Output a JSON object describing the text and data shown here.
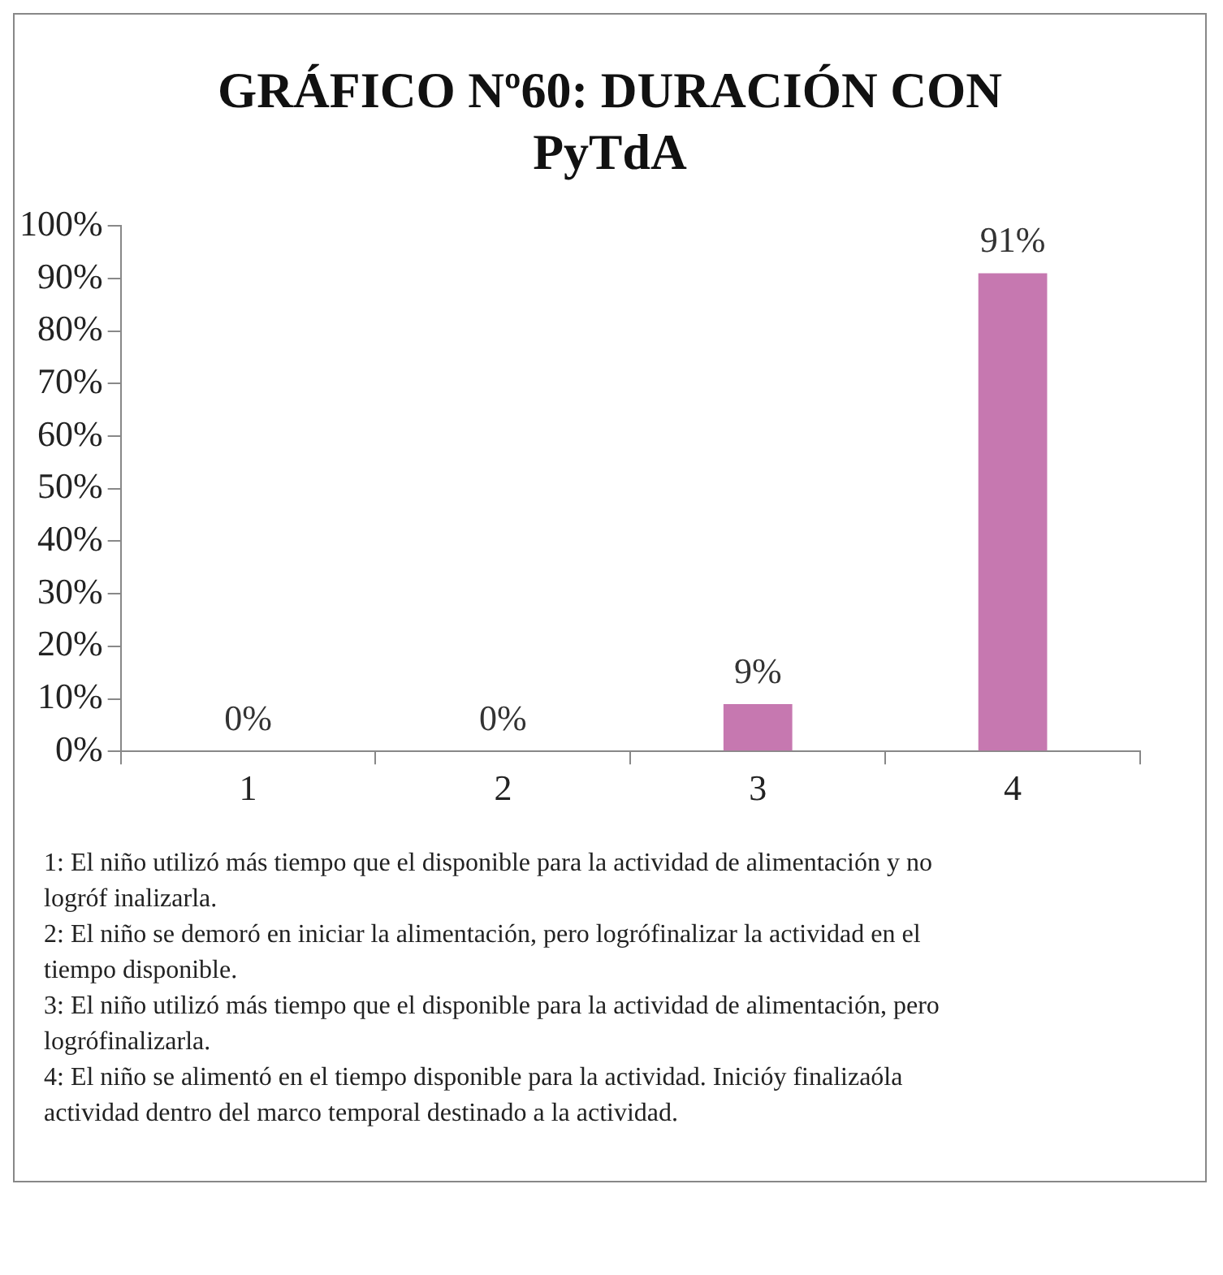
{
  "chart_data": {
    "type": "bar",
    "title": "GRÁFICO Nº60: DURACIÓN CON PyTdA",
    "categories": [
      "1",
      "2",
      "3",
      "4"
    ],
    "values": [
      0,
      0,
      9,
      91
    ],
    "value_labels": [
      "0%",
      "0%",
      "9%",
      "91%"
    ],
    "color": "#c678b0",
    "ylim": [
      0,
      100
    ],
    "yticks": [
      {
        "value": 0,
        "label": "0%"
      },
      {
        "value": 10,
        "label": "10%"
      },
      {
        "value": 20,
        "label": "20%"
      },
      {
        "value": 30,
        "label": "30%"
      },
      {
        "value": 40,
        "label": "40%"
      },
      {
        "value": 50,
        "label": "50%"
      },
      {
        "value": 60,
        "label": "60%"
      },
      {
        "value": 70,
        "label": "70%"
      },
      {
        "value": 80,
        "label": "80%"
      },
      {
        "value": 90,
        "label": "90%"
      },
      {
        "value": 100,
        "label": "100%"
      }
    ],
    "grid": false,
    "legend": false,
    "annotations": [
      "1: El niño utilizó más tiempo que el disponible para la actividad de alimentación y no logróf inalizarla.",
      "2: El niño se demoró en iniciar la alimentación, pero logrófinalizar la actividad en el tiempo disponible.",
      "3: El niño utilizó más tiempo que el disponible para la actividad de alimentación, pero logrófinalizarla.",
      "4: El niño se alimentó en el tiempo disponible para la actividad. Inicióy finalizaóla actividad dentro del marco temporal destinado a la actividad."
    ]
  }
}
